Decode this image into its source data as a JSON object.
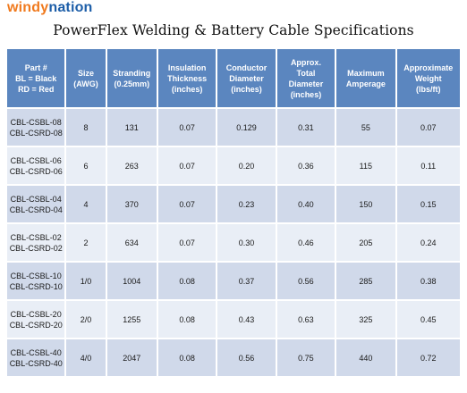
{
  "logo": {
    "part1": "windy",
    "part2": "nation"
  },
  "title": "PowerFlex Welding & Battery Cable Specifications",
  "colors": {
    "header_bg": "#5b86bf",
    "row_dark": "#d0d9ea",
    "row_light": "#e9eef6",
    "logo_orange": "#f07a1e",
    "logo_blue": "#1d5ea8"
  },
  "table": {
    "headers": [
      [
        "Part #",
        "BL = Black",
        "RD = Red"
      ],
      [
        "Size",
        "(AWG)"
      ],
      [
        "Stranding",
        "(0.25mm)"
      ],
      [
        "Insulation",
        "Thickness",
        "(inches)"
      ],
      [
        "Conductor",
        "Diameter",
        "(inches)"
      ],
      [
        "Approx.",
        "Total",
        "Diameter",
        "(inches)"
      ],
      [
        "Maximum",
        "Amperage"
      ],
      [
        "Approximate",
        "Weight",
        "(lbs/ft)"
      ]
    ],
    "rows": [
      {
        "part": [
          "CBL-CSBL-08",
          "CBL-CSRD-08"
        ],
        "size": "8",
        "stranding": "131",
        "insulation": "0.07",
        "conductor": "0.129",
        "total": "0.31",
        "amperage": "55",
        "weight": "0.07"
      },
      {
        "part": [
          "CBL-CSBL-06",
          "CBL-CSRD-06"
        ],
        "size": "6",
        "stranding": "263",
        "insulation": "0.07",
        "conductor": "0.20",
        "total": "0.36",
        "amperage": "115",
        "weight": "0.11"
      },
      {
        "part": [
          "CBL-CSBL-04",
          "CBL-CSRD-04"
        ],
        "size": "4",
        "stranding": "370",
        "insulation": "0.07",
        "conductor": "0.23",
        "total": "0.40",
        "amperage": "150",
        "weight": "0.15"
      },
      {
        "part": [
          "CBL-CSBL-02",
          "CBL-CSRD-02"
        ],
        "size": "2",
        "stranding": "634",
        "insulation": "0.07",
        "conductor": "0.30",
        "total": "0.46",
        "amperage": "205",
        "weight": "0.24"
      },
      {
        "part": [
          "CBL-CSBL-10",
          "CBL-CSRD-10"
        ],
        "size": "1/0",
        "stranding": "1004",
        "insulation": "0.08",
        "conductor": "0.37",
        "total": "0.56",
        "amperage": "285",
        "weight": "0.38"
      },
      {
        "part": [
          "CBL-CSBL-20",
          "CBL-CSRD-20"
        ],
        "size": "2/0",
        "stranding": "1255",
        "insulation": "0.08",
        "conductor": "0.43",
        "total": "0.63",
        "amperage": "325",
        "weight": "0.45"
      },
      {
        "part": [
          "CBL-CSBL-40",
          "CBL-CSRD-40"
        ],
        "size": "4/0",
        "stranding": "2047",
        "insulation": "0.08",
        "conductor": "0.56",
        "total": "0.75",
        "amperage": "440",
        "weight": "0.72"
      }
    ]
  }
}
